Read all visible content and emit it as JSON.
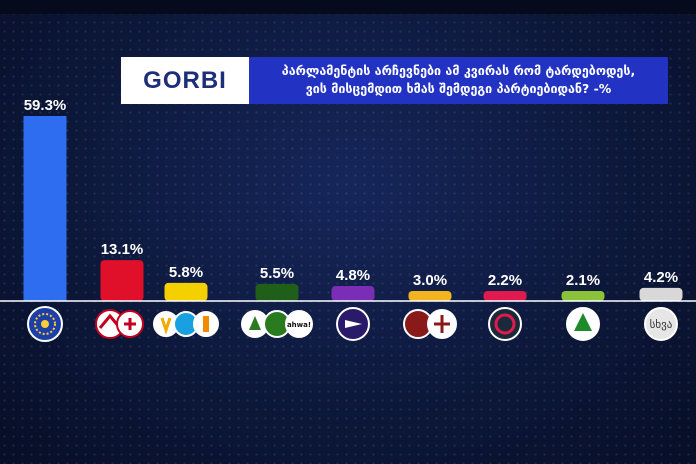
{
  "logo": {
    "text": "GORBI"
  },
  "title": "პარლამენტის არჩევნები  ამ კვირას რომ ტარდებოდეს,\nვის მისცემდით ხმას შემდეგი პარტიებიდან? -%",
  "other_badge_label": "სხვა",
  "chart_data": {
    "type": "bar",
    "title": "პარლამენტის არჩევნები  ამ კვირას რომ ტარდებოდეს, ვის მისცემდით ხმას შემდეგი პარტიებიდან? -%",
    "categories": [
      "",
      "",
      "",
      "",
      "",
      "",
      "",
      "",
      "სხვა"
    ],
    "values": [
      59.3,
      13.1,
      5.8,
      5.5,
      4.8,
      3.0,
      2.2,
      2.1,
      4.2
    ],
    "data_labels": [
      "59.3%",
      "13.1%",
      "5.8%",
      "5.5%",
      "4.8%",
      "3.0%",
      "2.2%",
      "2.1%",
      "4.2%"
    ],
    "colors": [
      "#2f6df0",
      "#e0102a",
      "#f5d000",
      "#1f5f1a",
      "#7a2db5",
      "#f2b51f",
      "#e01a4f",
      "#8ac23a",
      "#d8d8d8"
    ],
    "icons": [
      "georgian-dream-logo",
      "unm-coalition-logos",
      "strong-georgia-logos",
      "for-georgia-logos",
      "gakharia-party-logo",
      "alliance-of-patriots-logos",
      "girchi-logo",
      "girchi-more-freedom-logo",
      "other-badge"
    ],
    "ylim": [
      0,
      60
    ],
    "xlabel": "",
    "ylabel": ""
  }
}
